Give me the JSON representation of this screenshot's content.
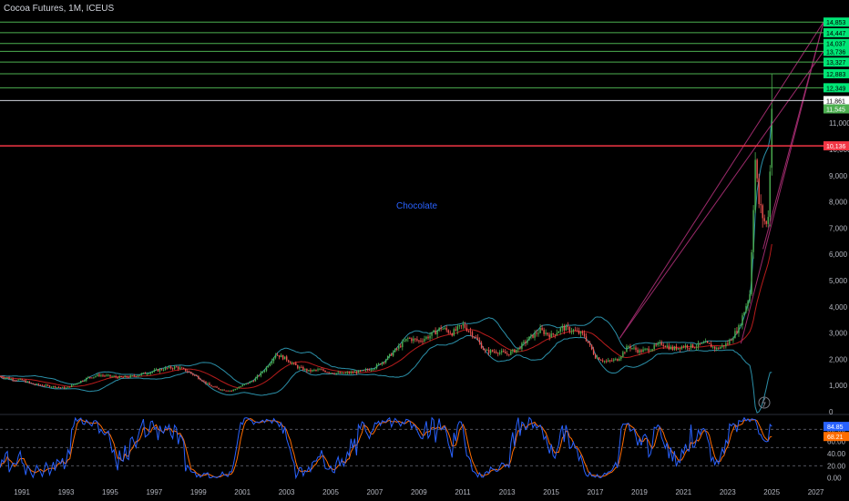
{
  "header": {
    "title": "Cocoa Futures, 1M, ICEUS"
  },
  "annotation": "Chocolate",
  "colors": {
    "background": "#000000",
    "up": "#26a69a",
    "up_bright": "#4caf50",
    "down": "#ef5350",
    "band": "#2b8fa8",
    "ma": "#b71c1c",
    "level_line": "#4caf50",
    "red_level": "#f23645",
    "white_level": "#d1d4dc",
    "trend": "#9c2a6b",
    "stoch_k": "#2962ff",
    "stoch_d": "#ff6d00"
  },
  "chart_data": [
    {
      "type": "candlestick",
      "title": "Cocoa Futures, 1M, ICEUS",
      "x_ticks": [
        "1991",
        "1993",
        "1995",
        "1997",
        "1999",
        "2001",
        "2003",
        "2005",
        "2007",
        "2009",
        "2011",
        "2013",
        "2015",
        "2017",
        "2019",
        "2021",
        "2023",
        "2025",
        "2027"
      ],
      "y_ticks": [
        "0",
        "1,000",
        "2,000",
        "3,000",
        "4,000",
        "5,000",
        "6,000",
        "7,000",
        "8,000",
        "9,000",
        "10,000",
        "11,000"
      ],
      "ylim": [
        0,
        15000
      ],
      "xlim": [
        1990.0,
        2028.5
      ],
      "price_path": [
        [
          1990.0,
          1350
        ],
        [
          1990.5,
          1250
        ],
        [
          1991.0,
          1200
        ],
        [
          1991.5,
          1050
        ],
        [
          1992.0,
          1000
        ],
        [
          1992.5,
          950
        ],
        [
          1993.0,
          900
        ],
        [
          1993.5,
          1100
        ],
        [
          1994.0,
          1300
        ],
        [
          1994.5,
          1400
        ],
        [
          1995.0,
          1350
        ],
        [
          1995.5,
          1300
        ],
        [
          1996.0,
          1350
        ],
        [
          1996.5,
          1450
        ],
        [
          1997.0,
          1550
        ],
        [
          1997.5,
          1650
        ],
        [
          1998.0,
          1700
        ],
        [
          1998.5,
          1550
        ],
        [
          1999.0,
          1300
        ],
        [
          1999.5,
          1000
        ],
        [
          2000.0,
          850
        ],
        [
          2000.5,
          800
        ],
        [
          2001.0,
          1000
        ],
        [
          2001.5,
          1200
        ],
        [
          2002.0,
          1600
        ],
        [
          2002.5,
          2200
        ],
        [
          2003.0,
          2000
        ],
        [
          2003.5,
          1700
        ],
        [
          2004.0,
          1550
        ],
        [
          2004.5,
          1600
        ],
        [
          2005.0,
          1500
        ],
        [
          2005.5,
          1450
        ],
        [
          2006.0,
          1500
        ],
        [
          2006.5,
          1550
        ],
        [
          2007.0,
          1700
        ],
        [
          2007.5,
          2000
        ],
        [
          2008.0,
          2400
        ],
        [
          2008.5,
          2800
        ],
        [
          2009.0,
          2700
        ],
        [
          2009.5,
          2900
        ],
        [
          2010.0,
          3200
        ],
        [
          2010.5,
          3000
        ],
        [
          2011.0,
          3300
        ],
        [
          2011.5,
          2900
        ],
        [
          2012.0,
          2300
        ],
        [
          2012.5,
          2300
        ],
        [
          2013.0,
          2200
        ],
        [
          2013.5,
          2400
        ],
        [
          2014.0,
          2800
        ],
        [
          2014.5,
          3100
        ],
        [
          2015.0,
          2900
        ],
        [
          2015.5,
          3200
        ],
        [
          2016.0,
          3100
        ],
        [
          2016.5,
          2900
        ],
        [
          2017.0,
          2100
        ],
        [
          2017.5,
          1900
        ],
        [
          2018.0,
          2000
        ],
        [
          2018.5,
          2500
        ],
        [
          2019.0,
          2300
        ],
        [
          2019.5,
          2400
        ],
        [
          2020.0,
          2600
        ],
        [
          2020.5,
          2400
        ],
        [
          2021.0,
          2500
        ],
        [
          2021.5,
          2500
        ],
        [
          2022.0,
          2600
        ],
        [
          2022.5,
          2400
        ],
        [
          2023.0,
          2600
        ],
        [
          2023.5,
          3200
        ],
        [
          2024.0,
          4500
        ],
        [
          2024.25,
          9600
        ],
        [
          2024.4,
          8000
        ],
        [
          2024.6,
          7400
        ],
        [
          2024.8,
          7000
        ],
        [
          2024.92,
          9200
        ],
        [
          2025.0,
          11545
        ]
      ],
      "levels": [
        {
          "label": "14,853",
          "value": 14853,
          "kind": "green"
        },
        {
          "label": "14,447",
          "value": 14447,
          "kind": "green"
        },
        {
          "label": "14,037",
          "value": 14037,
          "kind": "green"
        },
        {
          "label": "13,736",
          "value": 13736,
          "kind": "green"
        },
        {
          "label": "13,327",
          "value": 13327,
          "kind": "green"
        },
        {
          "label": "12,883",
          "value": 12883,
          "kind": "green"
        },
        {
          "label": "12,349",
          "value": 12349,
          "kind": "green"
        },
        {
          "label": "11,861",
          "value": 11861,
          "kind": "white"
        },
        {
          "label": "11,545",
          "value": 11545,
          "kind": "green_badge"
        },
        {
          "label": "10,136",
          "value": 10136,
          "kind": "red"
        }
      ]
    },
    {
      "type": "line",
      "title": "",
      "y_ticks": [
        "0.00",
        "20.00",
        "40.00",
        "60.00",
        "80.00"
      ],
      "ylim": [
        -8,
        100
      ],
      "last_values": [
        {
          "label": "84.85",
          "value": 84.85,
          "series": "k"
        },
        {
          "label": "68.21",
          "value": 68.21,
          "series": "d"
        }
      ]
    }
  ]
}
